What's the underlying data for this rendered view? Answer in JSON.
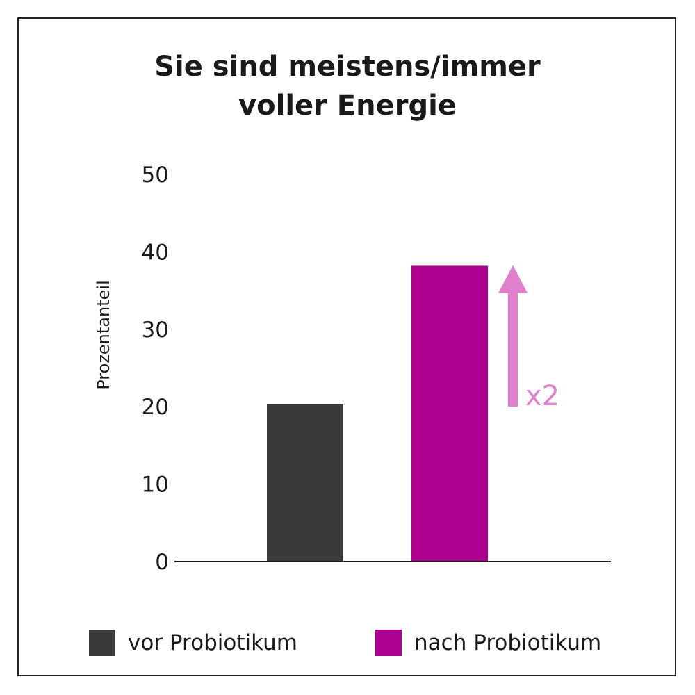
{
  "chart_data": {
    "type": "bar",
    "title_lines": [
      "Sie sind meistens/immer",
      "voller Energie"
    ],
    "ylabel": "Prozentanteil",
    "ylim": [
      0,
      50
    ],
    "yticks": [
      0,
      10,
      20,
      30,
      40,
      50
    ],
    "grid": false,
    "categories": [
      "vor Probiotikum",
      "nach Probiotikum"
    ],
    "values": [
      20.3,
      38.2
    ],
    "colors": [
      "#3a3a3a",
      "#b0008f"
    ],
    "annotation": {
      "text": "x2",
      "color": "#e080cc",
      "from_value": 20,
      "to_value": 38
    },
    "legend": {
      "position": "bottom",
      "entries": [
        {
          "label": "vor Probiotikum",
          "color": "#3a3a3a"
        },
        {
          "label": "nach Probiotikum",
          "color": "#b0008f"
        }
      ]
    }
  }
}
